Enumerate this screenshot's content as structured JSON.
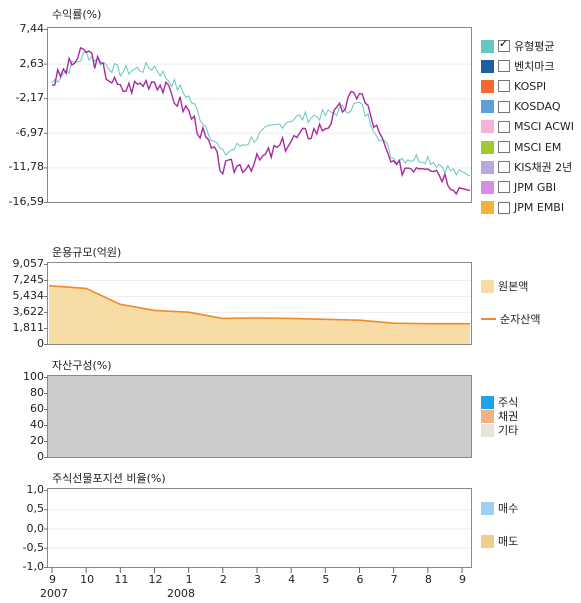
{
  "colors": {
    "avg_line": "#a82aa0",
    "bench_line": "#66c9bf",
    "net_asset_line": "#f08a2a",
    "principal_fill": "#f7dca5",
    "asset_bg": "#cccccc",
    "stock": "#1ea5e9",
    "bond": "#f2b183",
    "other": "#e6e5dc",
    "buy": "#9dd0f5",
    "sell": "#f2cf86"
  },
  "panel1": {
    "title": "수익률(%)",
    "yticks": [
      "7,44",
      "2,63",
      "-2,17",
      "-6,97",
      "-11,78",
      "-16,59"
    ],
    "ylim": [
      -16.59,
      7.44
    ],
    "legend": [
      {
        "label": "유형평균",
        "color": "#66c9bf",
        "checked": true
      },
      {
        "label": "벤치마크",
        "color": "#1d5e9e",
        "checked": false
      },
      {
        "label": "KOSPI",
        "color": "#f26a2e",
        "checked": false
      },
      {
        "label": "KOSDAQ",
        "color": "#5c9fd9",
        "checked": false
      },
      {
        "label": "MSCI ACWI",
        "color": "#f5b3d8",
        "checked": false
      },
      {
        "label": "MSCI EM",
        "color": "#a3c930",
        "checked": false
      },
      {
        "label": "KIS채권 2년",
        "color": "#b8a8e0",
        "checked": false
      },
      {
        "label": "JPM GBI",
        "color": "#d98ce8",
        "checked": false
      },
      {
        "label": "JPM EMBI",
        "color": "#f5b13d",
        "checked": false
      }
    ]
  },
  "panel2": {
    "title": "운용규모(억원)",
    "yticks": [
      "9,057",
      "7,245",
      "5,434",
      "3,622",
      "1,811",
      "0"
    ],
    "ylim": [
      0,
      9057
    ],
    "legend": [
      "원본액",
      "순자산액"
    ]
  },
  "panel3": {
    "title": "자산구성(%)",
    "yticks": [
      "100",
      "80",
      "60",
      "40",
      "20",
      "0"
    ],
    "legend": [
      "주식",
      "채권",
      "기타"
    ]
  },
  "panel4": {
    "title": "주식선물포지션 비율(%)",
    "yticks": [
      "1,0",
      "0,5",
      "0,0",
      "-0,5",
      "-1,0"
    ],
    "legend": [
      "매수",
      "매도"
    ]
  },
  "xaxis": {
    "months": [
      "9",
      "10",
      "11",
      "12",
      "1",
      "2",
      "3",
      "4",
      "5",
      "6",
      "7",
      "8",
      "9"
    ],
    "years": [
      "2007",
      "2008"
    ]
  },
  "chart_data": [
    {
      "type": "line",
      "title": "수익률(%)",
      "ylim": [
        -16.59,
        7.44
      ],
      "x": [
        "2007-09",
        "2007-10",
        "2007-11",
        "2007-12",
        "2008-01",
        "2008-02",
        "2008-03",
        "2008-04",
        "2008-05",
        "2008-06",
        "2008-07",
        "2008-08",
        "2008-09"
      ],
      "series": [
        {
          "name": "유형평균",
          "values": [
            0,
            4.5,
            -1,
            0.5,
            -4,
            -12,
            -11,
            -8,
            -6,
            -1,
            -12,
            -11,
            -15
          ]
        },
        {
          "values": [
            0,
            4,
            1.5,
            2.2,
            -2,
            -10,
            -7.5,
            -5,
            -4.5,
            -3,
            -10.5,
            -10.5,
            -13
          ]
        }
      ]
    },
    {
      "type": "area",
      "title": "운용규모(억원)",
      "ylim": [
        0,
        9057
      ],
      "x": [
        "2007-09",
        "2007-10",
        "2007-11",
        "2007-12",
        "2008-01",
        "2008-02",
        "2008-03",
        "2008-04",
        "2008-05",
        "2008-06",
        "2008-07",
        "2008-08",
        "2008-09"
      ],
      "series": [
        {
          "name": "원본액",
          "values": [
            6600,
            6300,
            4500,
            3800,
            3600,
            2900,
            2950,
            2900,
            2800,
            2700,
            2350,
            2300,
            2300
          ]
        },
        {
          "name": "순자산액",
          "values": [
            6600,
            6300,
            4500,
            3800,
            3600,
            2900,
            2950,
            2900,
            2800,
            2700,
            2350,
            2300,
            2300
          ]
        }
      ]
    },
    {
      "type": "area",
      "title": "자산구성(%)",
      "ylim": [
        0,
        100
      ],
      "series": [
        {
          "name": "주식",
          "values": []
        },
        {
          "name": "채권",
          "values": []
        },
        {
          "name": "기타",
          "values": [
            100,
            100,
            100,
            100,
            100,
            100,
            100,
            100,
            100,
            100,
            100,
            100,
            100
          ]
        }
      ]
    },
    {
      "type": "bar",
      "title": "주식선물포지션 비율(%)",
      "ylim": [
        -1.0,
        1.0
      ],
      "series": [
        {
          "name": "매수",
          "values": []
        },
        {
          "name": "매도",
          "values": []
        }
      ]
    }
  ]
}
